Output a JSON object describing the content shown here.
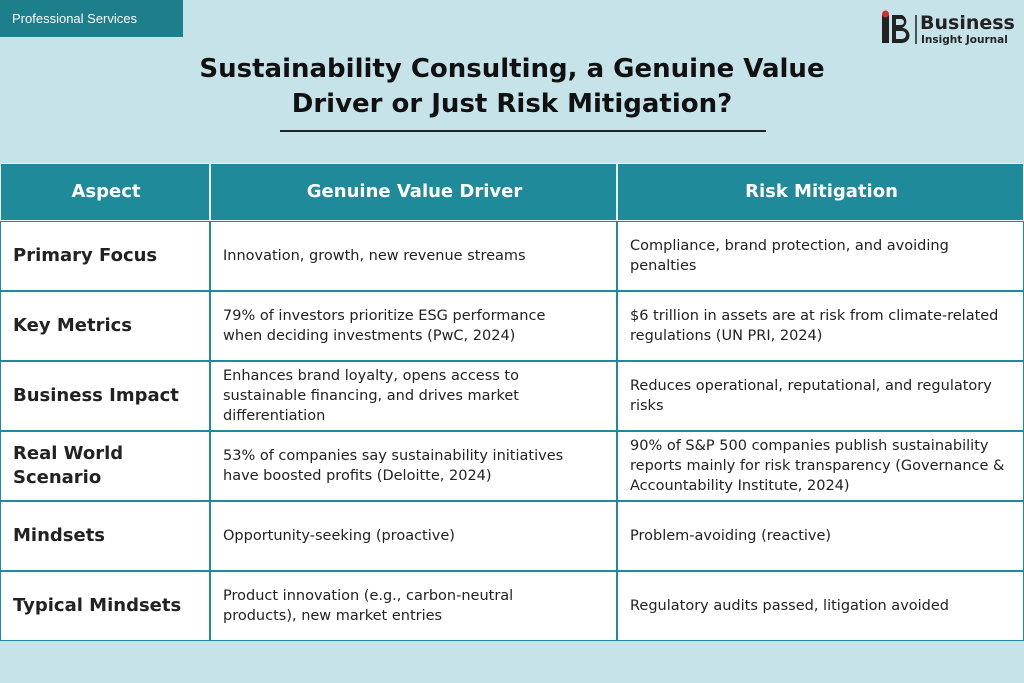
{
  "header": {
    "tag": "Professional Services",
    "logo": {
      "name": "Business",
      "subname": "Insight Journal"
    },
    "title": [
      "Sustainability Consulting, a Genuine Value",
      "Driver or Just Risk Mitigation?"
    ]
  },
  "table": {
    "columns": [
      "Aspect",
      "Genuine Value Driver",
      "Risk Mitigation"
    ],
    "rows": [
      [
        "Primary Focus",
        "Innovation, growth, new revenue streams",
        "Compliance, brand protection, and avoiding penalties"
      ],
      [
        "Key Metrics",
        "79% of investors prioritize ESG performance when deciding investments (PwC, 2024)",
        "$6 trillion in assets are at risk from climate-related regulations (UN PRI, 2024)"
      ],
      [
        "Business Impact",
        "Enhances brand loyalty, opens access to sustainable financing, and drives market differentiation",
        "Reduces operational, reputational, and regulatory risks"
      ],
      [
        "Real World Scenario",
        "53% of companies say sustainability initiatives have boosted profits (Deloitte, 2024)",
        "90% of S&P 500 companies publish sustainability reports mainly for risk transparency (Governance & Accountability Institute, 2024)"
      ],
      [
        "Mindsets",
        "Opportunity-seeking (proactive)",
        "Problem-avoiding (reactive)"
      ],
      [
        "Typical Mindsets",
        "Product innovation (e.g., carbon-neutral products), new market entries",
        "Regulatory audits passed, litigation avoided"
      ]
    ]
  }
}
